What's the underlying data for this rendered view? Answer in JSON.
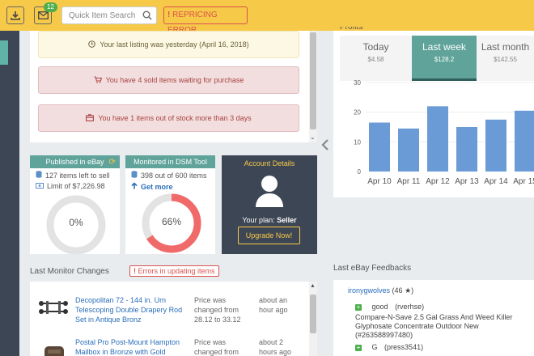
{
  "topbar": {
    "message_count": "12",
    "search_placeholder": "Quick Item Search",
    "repricing_label": "REPRICING ERROR"
  },
  "alerts": {
    "last_listing": "Your last listing was yesterday (April 16, 2018)",
    "sold_waiting": "You have 4 sold items waiting for purchase",
    "out_of_stock": "You have 1 items out of stock more than 3 days"
  },
  "cards": {
    "published": {
      "title": "Published in eBay",
      "items_left": "127 items left to sell",
      "limit": "Limit of $7,226.98",
      "percent": "0%",
      "fraction": 0
    },
    "monitored": {
      "title": "Monitored in DSM Tool",
      "count": "398 out of 600 items",
      "get_more": "Get more",
      "percent": "66%",
      "fraction": 0.66
    },
    "account": {
      "title": "Account Details",
      "plan_label": "Your plan:",
      "plan_value": "Seller",
      "upgrade": "Upgrade Now!"
    }
  },
  "monitor": {
    "title": "Last Monitor Changes",
    "errors_button": "Errors in updating items",
    "rows": [
      {
        "title": "Decopolitan 72 - 144 in. Urn Telescoping Double Drapery Rod Set in Antique Bronz",
        "change": "Price was changed from 28.12 to 33.12",
        "time": "about an hour ago"
      },
      {
        "title": "Postal Pro Post-Mount Hampton Mailbox in Bronze with Gold",
        "change": "Price was changed from",
        "time": "about 2 hours ago"
      }
    ]
  },
  "profits": {
    "title": "Profits",
    "tabs": [
      {
        "label": "Today",
        "value": "$4.58"
      },
      {
        "label": "Last week",
        "value": "$128.2"
      },
      {
        "label": "Last month",
        "value": "$142.55"
      }
    ]
  },
  "chart_data": {
    "type": "bar",
    "categories": [
      "Apr 10",
      "Apr 11",
      "Apr 12",
      "Apr 13",
      "Apr 14",
      "Apr 15"
    ],
    "values": [
      16.5,
      14.5,
      22,
      15,
      17.5,
      20.5
    ],
    "yticks": [
      "0",
      "10",
      "20",
      "30"
    ],
    "ylim": [
      0,
      30
    ],
    "color": "#6b9bd6"
  },
  "feedbacks": {
    "title": "Last eBay Feedbacks",
    "user": "ironygwolves",
    "user_score": "(46",
    "entries": [
      {
        "rating": "good",
        "buyer": "(rverhse)",
        "text": "Compare-N-Save 2.5 Gal Grass And Weed Killer Glyphosate Concentrate Outdoor New (#263588997480)"
      },
      {
        "rating": "G",
        "buyer": "(press3541)"
      }
    ]
  }
}
